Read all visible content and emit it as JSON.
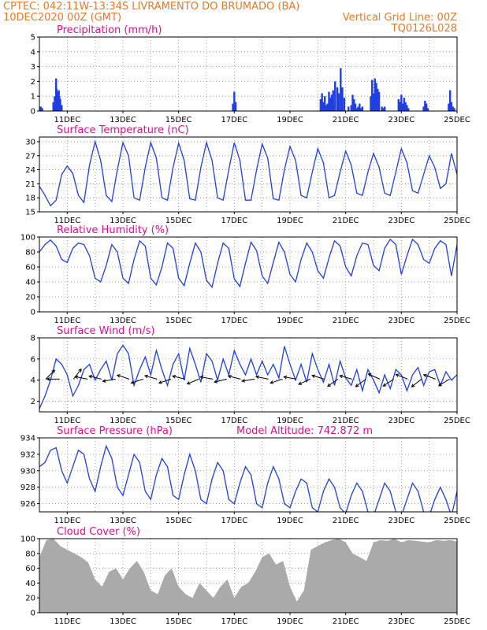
{
  "header": {
    "line1_left": "CPTEC:   042:11W-13:34S   LIVRAMENTO DO BRUMADO (BA)",
    "line2_left": "10DEC2020 00Z (GMT)",
    "line2_right": "Vertical Grid Line: 00Z",
    "line3_right": "TQ0126L028"
  },
  "colors": {
    "header_text": "#e8782a",
    "panel_title": "#e0108a",
    "line": "#1f3fe0",
    "bar": "#1f3fe0",
    "cloud": "#aaaaaa",
    "wind_arrow": "#000000"
  },
  "x_axis": {
    "start_day": 10,
    "end_day": 25,
    "tick_labels": [
      "11DEC",
      "13DEC",
      "15DEC",
      "17DEC",
      "19DEC",
      "21DEC",
      "23DEC",
      "25DEC"
    ],
    "tick_days": [
      11,
      13,
      15,
      17,
      19,
      21,
      23,
      25
    ],
    "vertical_gridlines": "00Z daily"
  },
  "chart_data": [
    {
      "type": "bar",
      "title": "Precipitation (mm/h)",
      "ylim": [
        0,
        5
      ],
      "yticks": [
        0,
        1,
        2,
        3,
        4,
        5
      ],
      "x_days": [
        10.05,
        10.1,
        10.5,
        10.55,
        10.6,
        10.62,
        10.65,
        10.68,
        10.7,
        10.72,
        10.75,
        10.8,
        16.95,
        17.0,
        17.05,
        20.1,
        20.15,
        20.2,
        20.25,
        20.3,
        20.35,
        20.4,
        20.45,
        20.5,
        20.55,
        20.62,
        20.7,
        20.75,
        20.82,
        20.88,
        20.95,
        21.1,
        21.2,
        21.25,
        21.3,
        21.35,
        21.4,
        21.45,
        21.5,
        21.55,
        21.6,
        21.9,
        21.95,
        22.0,
        22.05,
        22.1,
        22.15,
        22.2,
        22.3,
        22.35,
        22.4,
        22.9,
        22.95,
        23.0,
        23.05,
        23.1,
        23.15,
        23.2,
        23.25,
        23.8,
        23.85,
        23.9,
        23.95,
        24.7,
        24.75,
        24.8,
        24.85,
        24.9
      ],
      "values": [
        0.3,
        0.2,
        0.6,
        1.0,
        2.2,
        1.5,
        1.3,
        1.2,
        1.4,
        1.0,
        0.8,
        0.4,
        0.5,
        1.3,
        0.6,
        0.8,
        1.2,
        0.6,
        1.0,
        0.4,
        0.5,
        1.3,
        0.9,
        1.1,
        1.4,
        2.0,
        1.6,
        1.2,
        2.9,
        1.6,
        0.9,
        0.3,
        0.4,
        1.1,
        0.8,
        0.5,
        0.2,
        0.3,
        0.5,
        0.2,
        0.3,
        1.0,
        2.1,
        1.2,
        2.2,
        1.9,
        1.5,
        1.3,
        0.3,
        0.2,
        0.3,
        0.8,
        0.6,
        1.1,
        0.5,
        0.9,
        0.6,
        0.4,
        0.2,
        0.3,
        0.7,
        0.5,
        0.2,
        0.5,
        1.4,
        0.6,
        0.3,
        0.2
      ]
    },
    {
      "type": "line",
      "title": "Surface Temperature (nC)",
      "ylim": [
        15,
        31
      ],
      "yticks": [
        15,
        18,
        21,
        24,
        27,
        30
      ],
      "x_days": [
        10.0,
        10.2,
        10.4,
        10.6,
        10.8,
        11.0,
        11.2,
        11.4,
        11.6,
        11.8,
        12.0,
        12.2,
        12.4,
        12.6,
        12.8,
        13.0,
        13.2,
        13.4,
        13.6,
        13.8,
        14.0,
        14.2,
        14.4,
        14.6,
        14.8,
        15.0,
        15.2,
        15.4,
        15.6,
        15.8,
        16.0,
        16.2,
        16.4,
        16.6,
        16.8,
        17.0,
        17.2,
        17.4,
        17.6,
        17.8,
        18.0,
        18.2,
        18.4,
        18.6,
        18.8,
        19.0,
        19.2,
        19.4,
        19.6,
        19.8,
        20.0,
        20.2,
        20.4,
        20.6,
        20.8,
        21.0,
        21.2,
        21.4,
        21.6,
        21.8,
        22.0,
        22.2,
        22.4,
        22.6,
        22.8,
        23.0,
        23.2,
        23.4,
        23.6,
        23.8,
        24.0,
        24.2,
        24.4,
        24.6,
        24.8,
        25.0
      ],
      "values": [
        20.5,
        18.5,
        16.3,
        17.5,
        23.0,
        24.8,
        23.2,
        18.5,
        17.0,
        25.0,
        30.0,
        26.0,
        18.5,
        17.2,
        24.0,
        29.8,
        27.0,
        18.0,
        17.5,
        24.5,
        29.8,
        26.5,
        18.0,
        17.5,
        24.5,
        29.7,
        26.0,
        17.8,
        17.5,
        24.5,
        29.8,
        26.0,
        18.0,
        17.5,
        24.0,
        29.8,
        26.0,
        17.5,
        17.5,
        24.0,
        29.5,
        26.5,
        17.8,
        17.5,
        24.0,
        29.0,
        26.0,
        18.5,
        18.0,
        23.5,
        28.5,
        25.5,
        18.0,
        18.5,
        23.5,
        28.0,
        25.0,
        19.0,
        18.5,
        23.5,
        27.5,
        24.5,
        19.0,
        18.5,
        23.5,
        28.5,
        25.5,
        19.5,
        19.0,
        23.0,
        27.0,
        24.5,
        20.0,
        21.0,
        27.5,
        23.0
      ]
    },
    {
      "type": "line",
      "title": "Relative Humidity (%)",
      "ylim": [
        0,
        100
      ],
      "yticks": [
        0,
        20,
        40,
        60,
        80,
        100
      ],
      "x_days": [
        10.0,
        10.2,
        10.4,
        10.6,
        10.8,
        11.0,
        11.2,
        11.4,
        11.6,
        11.8,
        12.0,
        12.2,
        12.4,
        12.6,
        12.8,
        13.0,
        13.2,
        13.4,
        13.6,
        13.8,
        14.0,
        14.2,
        14.4,
        14.6,
        14.8,
        15.0,
        15.2,
        15.4,
        15.6,
        15.8,
        16.0,
        16.2,
        16.4,
        16.6,
        16.8,
        17.0,
        17.2,
        17.4,
        17.6,
        17.8,
        18.0,
        18.2,
        18.4,
        18.6,
        18.8,
        19.0,
        19.2,
        19.4,
        19.6,
        19.8,
        20.0,
        20.2,
        20.4,
        20.6,
        20.8,
        21.0,
        21.2,
        21.4,
        21.6,
        21.8,
        22.0,
        22.2,
        22.4,
        22.6,
        22.8,
        23.0,
        23.2,
        23.4,
        23.6,
        23.8,
        24.0,
        24.2,
        24.4,
        24.6,
        24.8,
        25.0
      ],
      "values": [
        80,
        90,
        96,
        88,
        70,
        66,
        85,
        92,
        90,
        75,
        45,
        40,
        62,
        90,
        80,
        45,
        38,
        70,
        95,
        88,
        45,
        36,
        60,
        92,
        85,
        45,
        35,
        65,
        92,
        80,
        42,
        33,
        65,
        92,
        85,
        44,
        34,
        65,
        93,
        82,
        48,
        38,
        66,
        93,
        80,
        50,
        40,
        70,
        92,
        80,
        55,
        45,
        72,
        95,
        88,
        60,
        48,
        75,
        92,
        90,
        62,
        55,
        85,
        97,
        90,
        50,
        75,
        97,
        90,
        70,
        65,
        85,
        95,
        90,
        48,
        90
      ]
    },
    {
      "type": "line",
      "title": "Surface Wind (m/s)",
      "ylim": [
        1,
        8
      ],
      "yticks": [
        2,
        4,
        6,
        8
      ],
      "x_days": [
        10.0,
        10.2,
        10.4,
        10.6,
        10.8,
        11.0,
        11.2,
        11.4,
        11.6,
        11.8,
        12.0,
        12.2,
        12.4,
        12.6,
        12.8,
        13.0,
        13.2,
        13.4,
        13.6,
        13.8,
        14.0,
        14.2,
        14.4,
        14.6,
        14.8,
        15.0,
        15.2,
        15.4,
        15.6,
        15.8,
        16.0,
        16.2,
        16.4,
        16.6,
        16.8,
        17.0,
        17.2,
        17.4,
        17.6,
        17.8,
        18.0,
        18.2,
        18.4,
        18.6,
        18.8,
        19.0,
        19.2,
        19.4,
        19.6,
        19.8,
        20.0,
        20.2,
        20.4,
        20.6,
        20.8,
        21.0,
        21.2,
        21.4,
        21.6,
        21.8,
        22.0,
        22.2,
        22.4,
        22.6,
        22.8,
        23.0,
        23.2,
        23.4,
        23.6,
        23.8,
        24.0,
        24.2,
        24.4,
        24.6,
        24.8,
        25.0
      ],
      "values": [
        1.3,
        2.5,
        4.0,
        6.0,
        5.5,
        4.5,
        2.5,
        3.5,
        5.0,
        5.5,
        4.0,
        5.0,
        5.8,
        4.0,
        6.5,
        7.3,
        6.5,
        3.5,
        5.0,
        6.2,
        4.5,
        6.8,
        5.0,
        3.5,
        5.5,
        6.5,
        4.0,
        7.0,
        5.5,
        3.8,
        6.5,
        5.8,
        4.0,
        6.0,
        4.5,
        6.8,
        5.5,
        4.5,
        6.0,
        4.5,
        5.8,
        4.5,
        5.5,
        4.2,
        7.2,
        5.5,
        4.0,
        5.5,
        3.8,
        6.5,
        5.0,
        3.8,
        5.5,
        3.5,
        5.8,
        4.2,
        3.5,
        5.0,
        3.0,
        5.0,
        4.0,
        2.8,
        4.5,
        3.2,
        5.0,
        4.5,
        3.0,
        4.5,
        5.2,
        3.5,
        4.8,
        5.0,
        3.5,
        4.8,
        4.0,
        4.5
      ],
      "arrows": {
        "x_days": [
          10.0,
          10.5,
          11.0,
          11.5,
          12.0,
          12.5,
          13.0,
          13.5,
          14.0,
          14.5,
          15.0,
          15.5,
          16.0,
          16.5,
          17.0,
          17.5,
          18.0,
          18.5,
          19.0,
          19.5,
          20.0,
          20.5,
          21.0,
          21.5,
          22.0,
          22.5,
          23.0,
          23.5,
          24.0,
          24.5
        ],
        "u": [
          1.0,
          -1.0,
          1.0,
          -1.0,
          -1.2,
          -1.1,
          -1.2,
          -1.2,
          -1.1,
          -1.2,
          -1.2,
          -1.2,
          -1.1,
          -1.2,
          -1.2,
          -1.2,
          -1.0,
          -1.2,
          -1.1,
          -1.1,
          -1.0,
          -1.0,
          -1.1,
          -0.8,
          -0.9,
          -0.9,
          -1.0,
          -0.9,
          -0.8,
          -0.8
        ],
        "v": [
          1.0,
          0.0,
          1.3,
          0.2,
          0.3,
          -0.2,
          0.4,
          -0.4,
          0.3,
          -0.4,
          0.3,
          -0.5,
          0.2,
          -0.3,
          0.3,
          -0.2,
          0.2,
          -0.4,
          0.2,
          -0.5,
          0.3,
          -0.7,
          0.3,
          -0.6,
          0.4,
          -0.6,
          0.4,
          -0.7,
          0.3,
          -0.5
        ]
      }
    },
    {
      "type": "line",
      "title": "Surface Pressure (hPa)",
      "annotation": "Model Altitude: 742.872 m",
      "ylim": [
        925,
        934
      ],
      "yticks": [
        926,
        928,
        930,
        932,
        934
      ],
      "x_days": [
        10.0,
        10.2,
        10.4,
        10.6,
        10.8,
        11.0,
        11.2,
        11.4,
        11.6,
        11.8,
        12.0,
        12.2,
        12.4,
        12.6,
        12.8,
        13.0,
        13.2,
        13.4,
        13.6,
        13.8,
        14.0,
        14.2,
        14.4,
        14.6,
        14.8,
        15.0,
        15.2,
        15.4,
        15.6,
        15.8,
        16.0,
        16.2,
        16.4,
        16.6,
        16.8,
        17.0,
        17.2,
        17.4,
        17.6,
        17.8,
        18.0,
        18.2,
        18.4,
        18.6,
        18.8,
        19.0,
        19.2,
        19.4,
        19.6,
        19.8,
        20.0,
        20.2,
        20.4,
        20.6,
        20.8,
        21.0,
        21.2,
        21.4,
        21.6,
        21.8,
        22.0,
        22.2,
        22.4,
        22.6,
        22.8,
        23.0,
        23.2,
        23.4,
        23.6,
        23.8,
        24.0,
        24.2,
        24.4,
        24.6,
        24.8,
        25.0
      ],
      "values": [
        930.5,
        931.0,
        932.5,
        932.8,
        930.0,
        928.5,
        930.5,
        932.5,
        932.0,
        929.0,
        927.5,
        930.5,
        933.0,
        931.5,
        928.0,
        927.0,
        929.5,
        932.0,
        931.0,
        927.5,
        926.5,
        929.5,
        931.5,
        930.5,
        927.0,
        926.5,
        929.5,
        932.0,
        930.0,
        926.5,
        926.0,
        929.0,
        931.0,
        930.0,
        926.5,
        926.0,
        928.5,
        930.5,
        929.5,
        926.0,
        925.5,
        928.5,
        930.5,
        929.0,
        926.0,
        925.5,
        927.5,
        929.0,
        928.5,
        925.5,
        925.0,
        927.5,
        929.0,
        928.0,
        925.5,
        924.8,
        927.0,
        928.5,
        927.5,
        925.0,
        924.5,
        926.5,
        928.5,
        927.5,
        925.0,
        924.5,
        926.5,
        928.5,
        927.5,
        925.0,
        924.5,
        926.5,
        928.0,
        926.5,
        924.5,
        927.5
      ]
    },
    {
      "type": "area",
      "title": "Cloud Cover (%)",
      "ylim": [
        0,
        100
      ],
      "yticks": [
        0,
        20,
        40,
        60,
        80,
        100
      ],
      "x_days": [
        10.0,
        10.25,
        10.5,
        10.75,
        11.0,
        11.25,
        11.5,
        11.75,
        12.0,
        12.25,
        12.5,
        12.75,
        13.0,
        13.25,
        13.5,
        13.75,
        14.0,
        14.25,
        14.5,
        14.75,
        15.0,
        15.25,
        15.5,
        15.75,
        16.0,
        16.25,
        16.5,
        16.75,
        17.0,
        17.25,
        17.5,
        17.75,
        18.0,
        18.25,
        18.5,
        18.75,
        19.0,
        19.25,
        19.5,
        19.75,
        20.0,
        20.25,
        20.5,
        20.75,
        21.0,
        21.25,
        21.5,
        21.75,
        22.0,
        22.25,
        22.5,
        22.75,
        23.0,
        23.25,
        23.5,
        23.75,
        24.0,
        24.25,
        24.5,
        24.75,
        25.0
      ],
      "values": [
        75,
        98,
        100,
        90,
        85,
        80,
        75,
        68,
        45,
        35,
        55,
        60,
        45,
        60,
        70,
        55,
        30,
        25,
        50,
        60,
        35,
        25,
        20,
        40,
        30,
        20,
        35,
        45,
        20,
        35,
        40,
        55,
        75,
        80,
        65,
        70,
        35,
        15,
        30,
        85,
        90,
        95,
        98,
        100,
        95,
        80,
        75,
        70,
        95,
        98,
        97,
        100,
        95,
        98,
        97,
        96,
        95,
        98,
        97,
        98,
        96
      ]
    }
  ]
}
